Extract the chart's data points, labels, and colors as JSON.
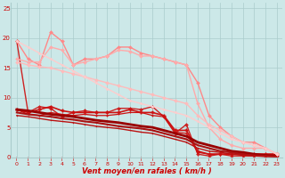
{
  "xlabel": "Vent moyen/en rafales ( km/h )",
  "bg_color": "#cce8e8",
  "grid_color": "#aacccc",
  "xlim": [
    -0.5,
    23.5
  ],
  "ylim": [
    0,
    26
  ],
  "yticks": [
    0,
    5,
    10,
    15,
    20,
    25
  ],
  "lines": [
    {
      "y": [
        19.5,
        7.5,
        8.5,
        8.2,
        6.8,
        7.5,
        7.8,
        7.5,
        7.5,
        8.2,
        8.2,
        8.0,
        8.5,
        6.8,
        4.0,
        5.5,
        0.5,
        0.2,
        0.5,
        0.2,
        0.2,
        0.2,
        0.2,
        0.2
      ],
      "color": "#cc2222",
      "lw": 1.0,
      "marker": "D",
      "ms": 2.0
    },
    {
      "y": [
        8.0,
        7.5,
        8.0,
        8.5,
        7.8,
        7.5,
        7.5,
        7.5,
        7.5,
        7.5,
        8.0,
        7.5,
        7.5,
        7.0,
        4.5,
        4.5,
        1.0,
        0.5,
        0.5,
        0.5,
        0.5,
        0.5,
        0.5,
        0.5
      ],
      "color": "#cc1111",
      "lw": 1.2,
      "marker": "P",
      "ms": 2.5
    },
    {
      "y": [
        8.0,
        7.2,
        7.0,
        7.5,
        7.2,
        7.0,
        7.2,
        7.0,
        7.0,
        7.2,
        7.5,
        7.5,
        7.0,
        6.8,
        4.2,
        4.0,
        0.8,
        0.5,
        0.5,
        0.5,
        0.5,
        0.5,
        0.5,
        0.5
      ],
      "color": "#cc1111",
      "lw": 0.9,
      "marker": ".",
      "ms": 2.0
    },
    {
      "y": [
        8.0,
        7.8,
        7.5,
        7.2,
        7.0,
        6.8,
        6.5,
        6.2,
        6.0,
        5.8,
        5.5,
        5.2,
        5.0,
        4.5,
        4.0,
        3.5,
        2.5,
        2.0,
        1.5,
        1.0,
        0.8,
        0.5,
        0.3,
        0.2
      ],
      "color": "#990000",
      "lw": 2.0,
      "marker": null,
      "ms": 0
    },
    {
      "y": [
        7.5,
        7.2,
        7.0,
        6.8,
        6.5,
        6.3,
        6.0,
        5.8,
        5.5,
        5.2,
        5.0,
        4.8,
        4.5,
        4.0,
        3.5,
        3.0,
        2.0,
        1.5,
        1.0,
        0.8,
        0.5,
        0.3,
        0.2,
        0.1
      ],
      "color": "#aa1111",
      "lw": 1.5,
      "marker": ".",
      "ms": 1.5
    },
    {
      "y": [
        7.0,
        6.8,
        6.5,
        6.2,
        6.0,
        5.8,
        5.5,
        5.2,
        5.0,
        4.8,
        4.5,
        4.2,
        4.0,
        3.5,
        3.0,
        2.5,
        1.5,
        1.0,
        0.8,
        0.5,
        0.3,
        0.2,
        0.1,
        0.1
      ],
      "color": "#bb1111",
      "lw": 1.0,
      "marker": ".",
      "ms": 1.5
    },
    {
      "y": [
        19.5,
        16.5,
        15.5,
        21.0,
        19.5,
        15.5,
        16.5,
        16.5,
        17.0,
        18.5,
        18.5,
        17.5,
        17.0,
        16.5,
        16.0,
        15.5,
        12.5,
        7.0,
        5.0,
        3.5,
        2.5,
        2.5,
        1.5,
        0.5
      ],
      "color": "#ff8888",
      "lw": 1.0,
      "marker": "D",
      "ms": 2.0
    },
    {
      "y": [
        16.5,
        16.0,
        16.0,
        18.5,
        18.0,
        15.5,
        16.0,
        16.5,
        17.0,
        18.0,
        17.8,
        17.0,
        17.0,
        16.5,
        16.0,
        15.5,
        9.0,
        5.0,
        3.0,
        2.0,
        1.5,
        1.5,
        1.5,
        0.5
      ],
      "color": "#ffaaaa",
      "lw": 1.0,
      "marker": "D",
      "ms": 2.0
    },
    {
      "y": [
        16.0,
        15.5,
        15.2,
        15.0,
        14.5,
        14.0,
        13.5,
        13.0,
        12.5,
        12.0,
        11.5,
        11.0,
        10.5,
        10.0,
        9.5,
        9.0,
        7.0,
        5.5,
        4.5,
        3.5,
        2.5,
        2.0,
        1.5,
        0.5
      ],
      "color": "#ffbbbb",
      "lw": 1.0,
      "marker": "D",
      "ms": 2.0
    },
    {
      "y": [
        19.5,
        18.5,
        17.5,
        16.5,
        15.5,
        14.5,
        13.5,
        12.5,
        11.5,
        10.5,
        9.5,
        9.0,
        8.5,
        8.0,
        7.5,
        7.0,
        6.0,
        5.0,
        4.0,
        3.0,
        2.5,
        2.0,
        1.5,
        0.5
      ],
      "color": "#ffcccc",
      "lw": 1.0,
      "marker": "D",
      "ms": 1.5
    }
  ],
  "arrow_symbol": "↑",
  "font_color": "#cc0000",
  "tick_fontsize": 5.0,
  "xlabel_fontsize": 6.0
}
